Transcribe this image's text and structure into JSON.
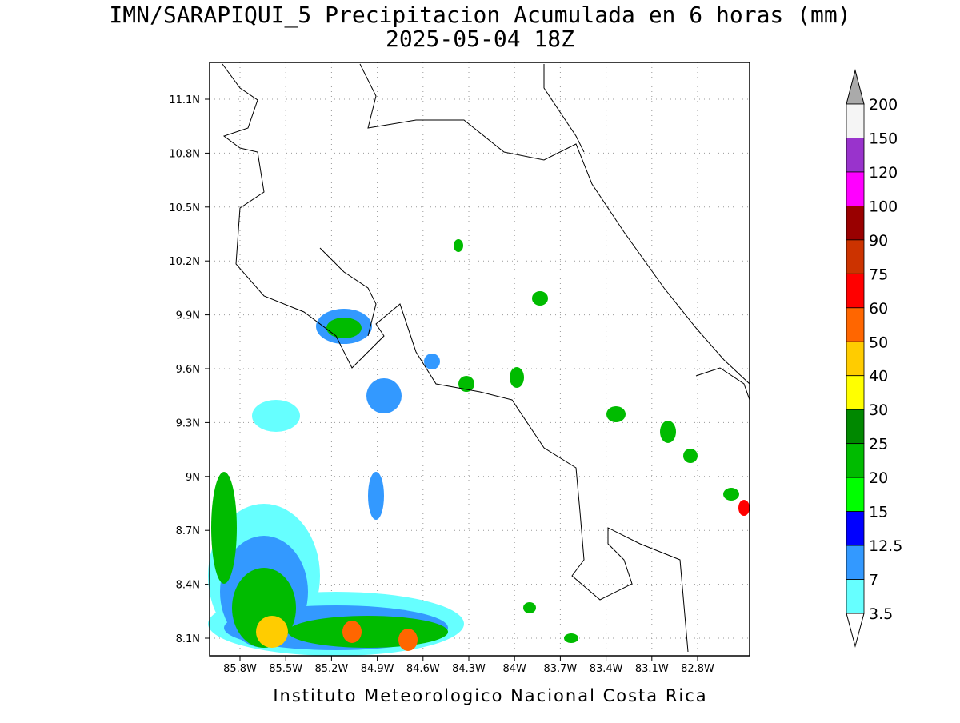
{
  "title": {
    "line1": "IMN/SARAPIQUI_5 Precipitacion Acumulada en 6 horas (mm)",
    "line2": "2025-05-04 18Z"
  },
  "map": {
    "lon_ticks": [
      "85.8W",
      "85.5W",
      "85.2W",
      "84.9W",
      "84.6W",
      "84.3W",
      "84W",
      "83.7W",
      "83.4W",
      "83.1W",
      "82.8W"
    ],
    "lat_ticks": [
      "11.1N",
      "10.8N",
      "10.5N",
      "10.2N",
      "9.9N",
      "9.6N",
      "9.3N",
      "9N",
      "8.7N",
      "8.4N",
      "8.1N"
    ]
  },
  "colorbar": {
    "labels": [
      "200",
      "150",
      "120",
      "100",
      "90",
      "75",
      "60",
      "50",
      "40",
      "30",
      "25",
      "20",
      "15",
      "12.5",
      "7",
      "3.5"
    ],
    "colors": [
      "#f5f5f5",
      "#9933cc",
      "#ff00ff",
      "#990000",
      "#cc3300",
      "#ff0000",
      "#ff6600",
      "#ffcc00",
      "#ffff00",
      "#008800",
      "#00bb00",
      "#00ff00",
      "#0000ff",
      "#3399ff",
      "#66ffff"
    ],
    "over_color": "#aaaaaa",
    "under_color": "#ffffff"
  },
  "footer": "Instituto Meteorologico Nacional Costa Rica"
}
